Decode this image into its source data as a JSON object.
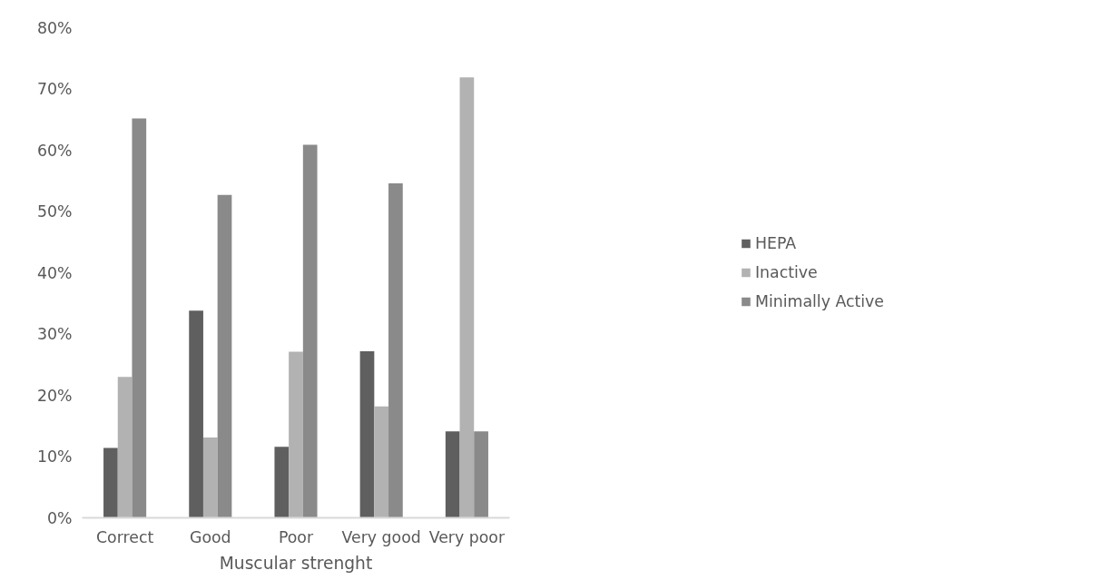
{
  "chart_data": {
    "type": "bar",
    "xlabel": "Muscular strenght",
    "categories": [
      "Correct",
      "Good",
      "Poor",
      "Very good",
      "Very poor"
    ],
    "series": [
      {
        "name": "HEPA",
        "color": "#5f5f5f",
        "values": [
          11.4,
          33.8,
          11.6,
          27.2,
          14.1
        ]
      },
      {
        "name": "Inactive",
        "color": "#b2b2b2",
        "values": [
          23.0,
          13.1,
          27.1,
          18.2,
          71.9
        ]
      },
      {
        "name": "Minimally Active",
        "color": "#8a8a8a",
        "values": [
          65.2,
          52.7,
          60.9,
          54.6,
          14.1
        ]
      }
    ],
    "ylim": [
      0,
      80
    ],
    "yticks": [
      {
        "value": 0,
        "label": "0%"
      },
      {
        "value": 10,
        "label": "10%"
      },
      {
        "value": 20,
        "label": "20%"
      },
      {
        "value": 30,
        "label": "30%"
      },
      {
        "value": 40,
        "label": "40%"
      },
      {
        "value": 50,
        "label": "50%"
      },
      {
        "value": 60,
        "label": "60%"
      },
      {
        "value": 70,
        "label": "70%"
      },
      {
        "value": 80,
        "label": "80%"
      }
    ],
    "grid": false,
    "legend": "right"
  }
}
